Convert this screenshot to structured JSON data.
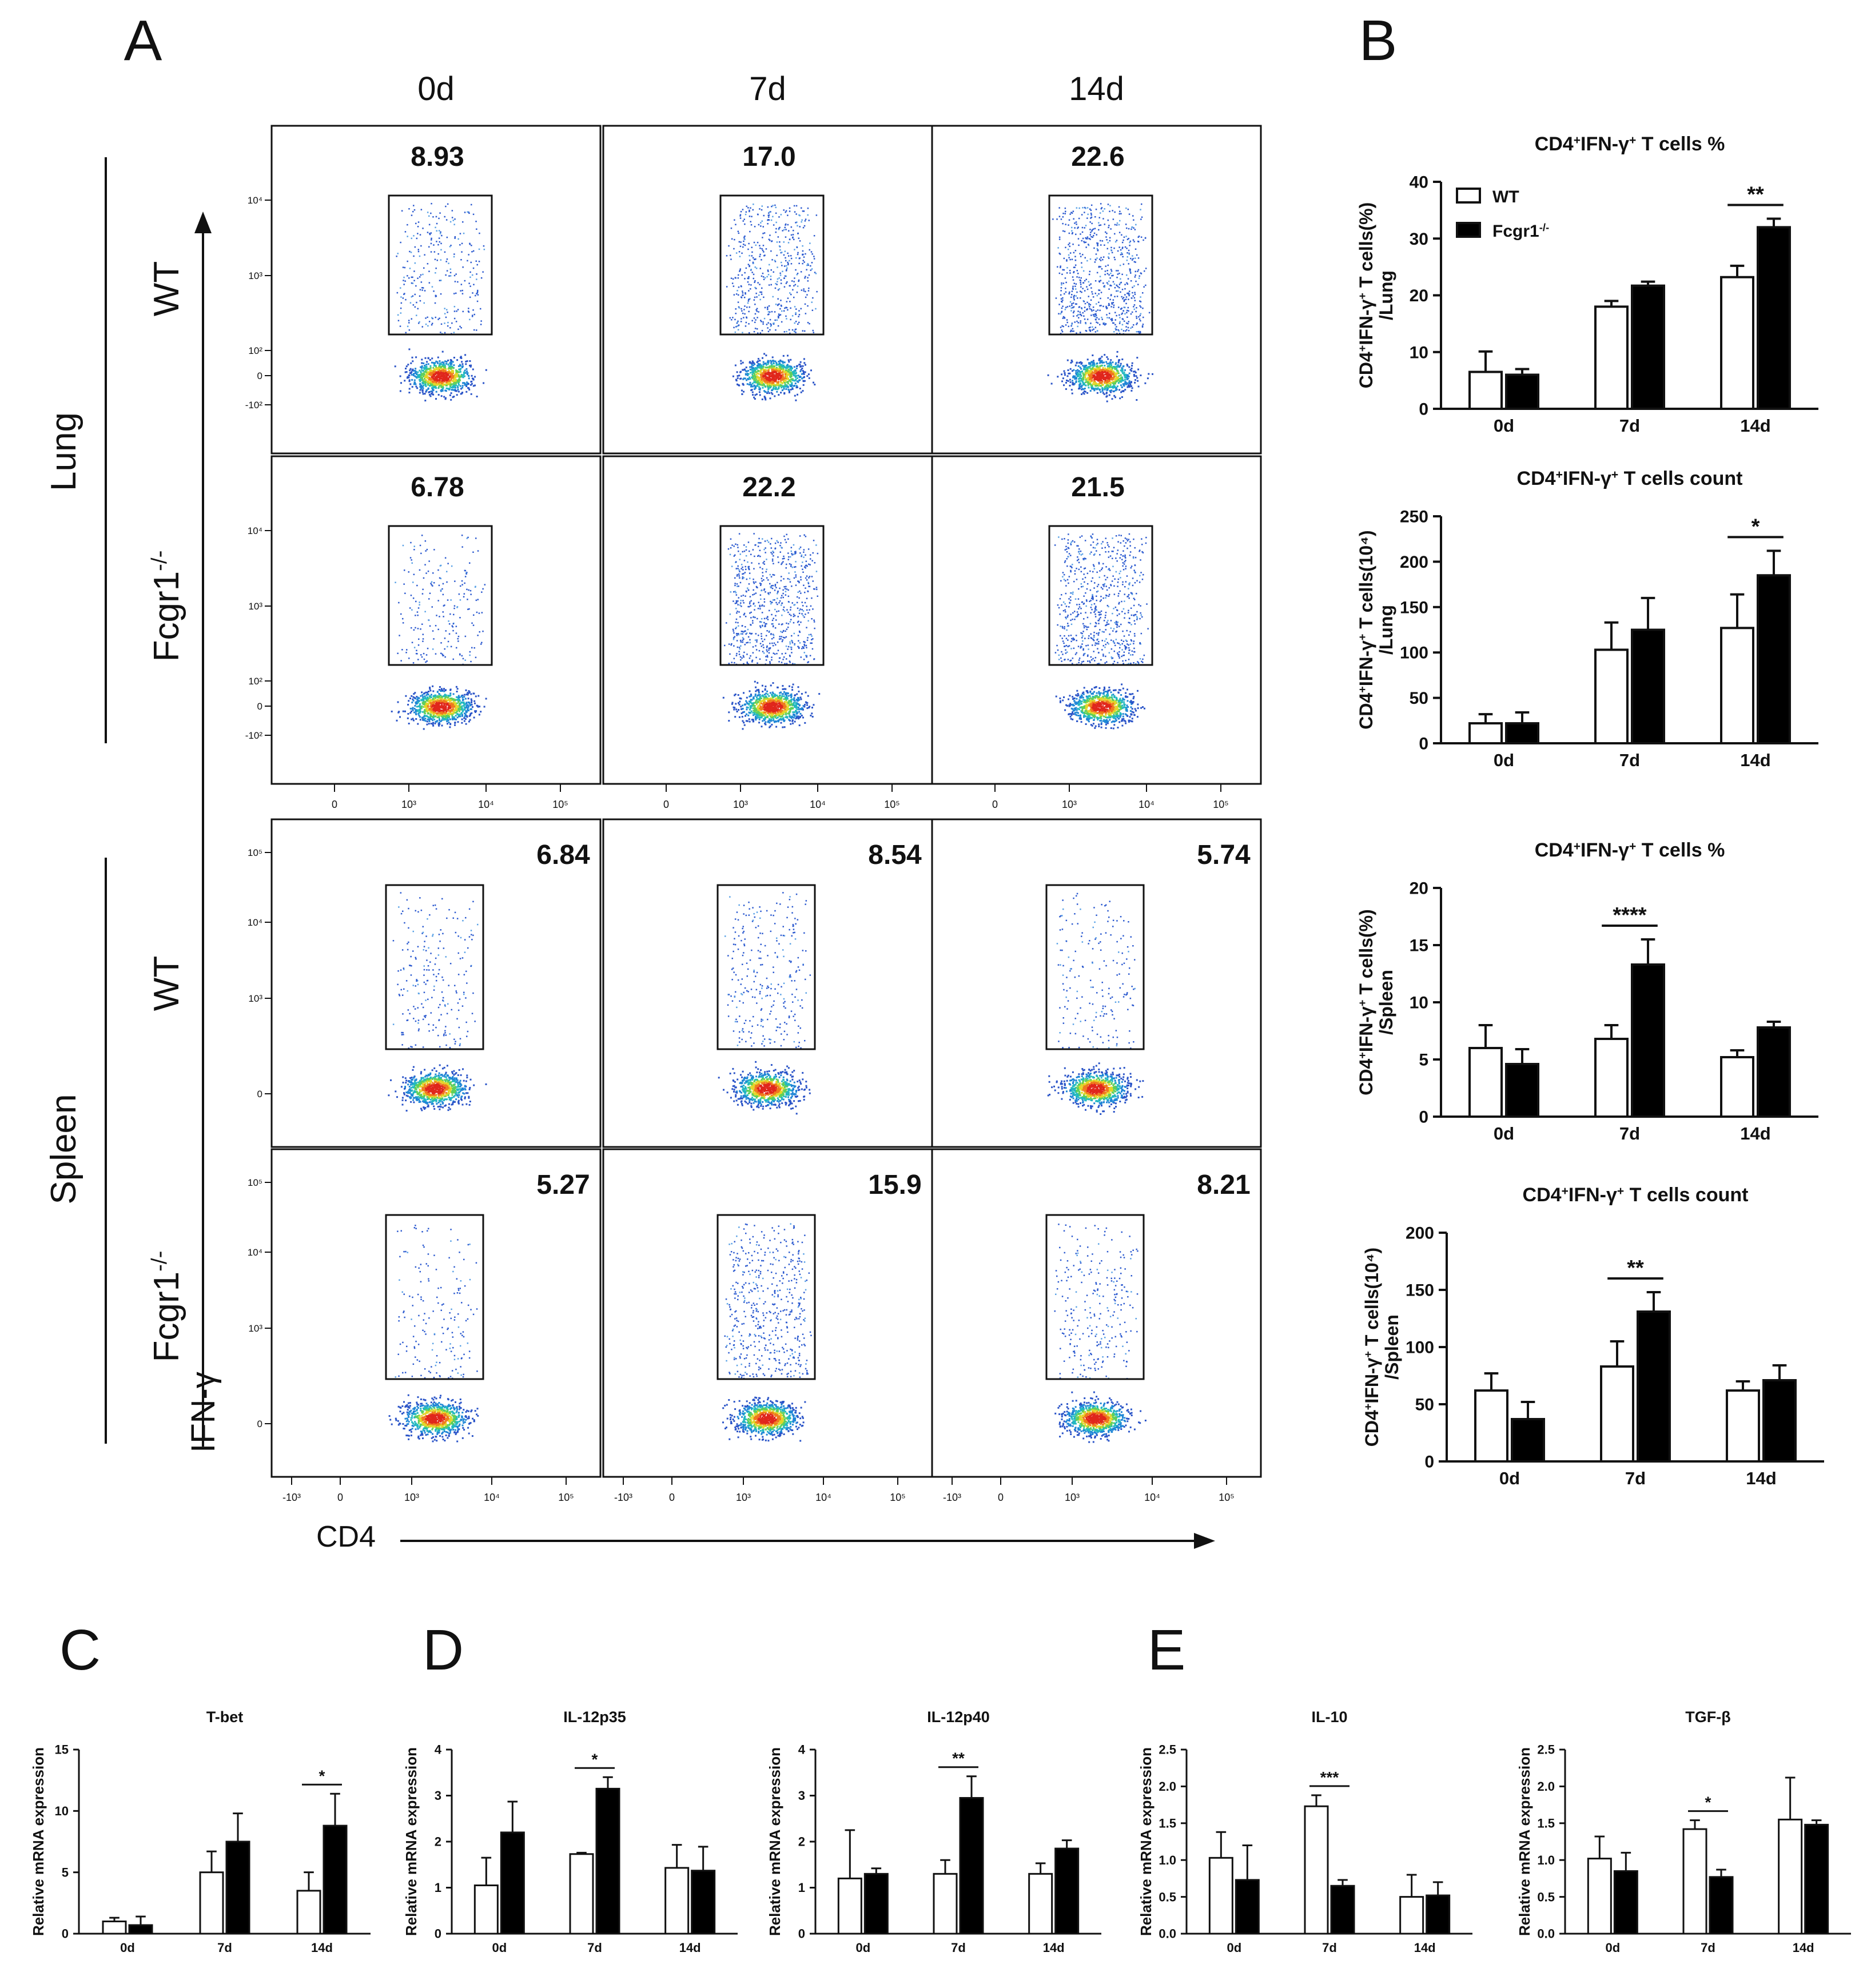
{
  "panel_letters": [
    "A",
    "B",
    "C",
    "D",
    "E"
  ],
  "flow": {
    "timepoints": [
      "0d",
      "7d",
      "14d"
    ],
    "tissues": [
      "Lung",
      "Spleen"
    ],
    "genotypes": [
      "WT",
      "Fcgr1-/-"
    ],
    "x_axis_label": "CD4",
    "y_axis_label": "IFN-γ",
    "gate_percentages": [
      [
        "8.93",
        "17.0",
        "22.6"
      ],
      [
        "6.78",
        "22.2",
        "21.5"
      ],
      [
        "6.84",
        "8.54",
        "5.74"
      ],
      [
        "5.27",
        "15.9",
        "8.21"
      ]
    ],
    "lung_y_ticks": [
      "10⁴",
      "10³",
      "10²",
      "0",
      "-10²"
    ],
    "spleen_y_ticks": [
      "10⁵",
      "10⁴",
      "10³",
      "0"
    ],
    "lung_x_ticks": [
      "0",
      "10³",
      "10⁴",
      "10⁵"
    ],
    "spleen_x_ticks": [
      "-10³",
      "0",
      "10³",
      "10⁴",
      "10⁵"
    ]
  },
  "legend": {
    "wt": "WT",
    "ko": "Fcgr1-/-"
  },
  "colors": {
    "wt_fill": "#ffffff",
    "ko_fill": "#000000",
    "axis": "#111111"
  },
  "chart_data": [
    {
      "type": "bar",
      "panel": "B",
      "title": "CD4+IFN-γ+ T cells %",
      "ylabel": "CD4+IFN-γ+ T cells(%)/Lung",
      "categories": [
        "0d",
        "7d",
        "14d"
      ],
      "ylim": [
        0,
        40
      ],
      "yticks": [
        0,
        10,
        20,
        30,
        40
      ],
      "series": [
        {
          "name": "WT",
          "values": [
            6.5,
            18,
            23.2
          ],
          "errors": [
            3.6,
            1,
            2
          ]
        },
        {
          "name": "Fcgr1-/-",
          "values": [
            6,
            21.7,
            32
          ],
          "errors": [
            1,
            0.7,
            1.5
          ]
        }
      ],
      "significance": [
        {
          "category": "14d",
          "label": "**"
        }
      ]
    },
    {
      "type": "bar",
      "panel": "B",
      "title": "CD4+IFN-γ+ T cells count",
      "ylabel": "CD4+IFN-γ+ T cells(10⁴)/Lung",
      "categories": [
        "0d",
        "7d",
        "14d"
      ],
      "ylim": [
        0,
        250
      ],
      "yticks": [
        0,
        50,
        100,
        150,
        200,
        250
      ],
      "series": [
        {
          "name": "WT",
          "values": [
            22,
            103,
            127
          ],
          "errors": [
            10,
            30,
            37
          ]
        },
        {
          "name": "Fcgr1-/-",
          "values": [
            22,
            125,
            185
          ],
          "errors": [
            12,
            35,
            27
          ]
        }
      ],
      "significance": [
        {
          "category": "14d",
          "label": "*"
        }
      ]
    },
    {
      "type": "bar",
      "panel": "B",
      "title": "CD4+IFN-γ+ T cells %",
      "ylabel": "CD4+IFN-γ+ T cells(%)/Spleen",
      "categories": [
        "0d",
        "7d",
        "14d"
      ],
      "ylim": [
        0,
        20
      ],
      "yticks": [
        0,
        5,
        10,
        15,
        20
      ],
      "series": [
        {
          "name": "WT",
          "values": [
            6,
            6.8,
            5.2
          ],
          "errors": [
            2,
            1.2,
            0.6
          ]
        },
        {
          "name": "Fcgr1-/-",
          "values": [
            4.6,
            13.3,
            7.8
          ],
          "errors": [
            1.3,
            2.2,
            0.5
          ]
        }
      ],
      "significance": [
        {
          "category": "7d",
          "label": "****"
        }
      ]
    },
    {
      "type": "bar",
      "panel": "B",
      "title": "CD4+IFN-γ+ T cells count",
      "ylabel": "CD4+IFN-γ+ T cells(10⁴)/Spleen",
      "categories": [
        "0d",
        "7d",
        "14d"
      ],
      "ylim": [
        0,
        200
      ],
      "yticks": [
        0,
        50,
        100,
        150,
        200
      ],
      "series": [
        {
          "name": "WT",
          "values": [
            62,
            83,
            62
          ],
          "errors": [
            15,
            22,
            8
          ]
        },
        {
          "name": "Fcgr1-/-",
          "values": [
            37,
            131,
            71
          ],
          "errors": [
            15,
            17,
            13
          ]
        }
      ],
      "significance": [
        {
          "category": "7d",
          "label": "**"
        }
      ]
    },
    {
      "type": "bar",
      "panel": "C",
      "title": "T-bet",
      "ylabel": "Relative mRNA expression",
      "categories": [
        "0d",
        "7d",
        "14d"
      ],
      "ylim": [
        0,
        15
      ],
      "yticks": [
        0,
        5,
        10,
        15
      ],
      "series": [
        {
          "name": "WT",
          "values": [
            1,
            5,
            3.5
          ],
          "errors": [
            0.3,
            1.7,
            1.5
          ]
        },
        {
          "name": "Fcgr1-/-",
          "values": [
            0.7,
            7.5,
            8.8
          ],
          "errors": [
            0.7,
            2.3,
            2.6
          ]
        }
      ],
      "significance": [
        {
          "category": "14d",
          "label": "*"
        }
      ]
    },
    {
      "type": "bar",
      "panel": "D",
      "title": "IL-12p35",
      "ylabel": "Relative mRNA expression",
      "categories": [
        "0d",
        "7d",
        "14d"
      ],
      "ylim": [
        0,
        4
      ],
      "yticks": [
        0,
        1,
        2,
        3,
        4
      ],
      "series": [
        {
          "name": "WT",
          "values": [
            1.05,
            1.73,
            1.43
          ],
          "errors": [
            0.6,
            0.03,
            0.5
          ]
        },
        {
          "name": "Fcgr1-/-",
          "values": [
            2.2,
            3.15,
            1.37
          ],
          "errors": [
            0.67,
            0.25,
            0.52
          ]
        }
      ],
      "significance": [
        {
          "category": "7d",
          "label": "*"
        }
      ]
    },
    {
      "type": "bar",
      "panel": "D",
      "title": "IL-12p40",
      "ylabel": "Relative mRNA expression",
      "categories": [
        "0d",
        "7d",
        "14d"
      ],
      "ylim": [
        0,
        4
      ],
      "yticks": [
        0,
        1,
        2,
        3,
        4
      ],
      "series": [
        {
          "name": "WT",
          "values": [
            1.2,
            1.3,
            1.3
          ],
          "errors": [
            1.05,
            0.3,
            0.23
          ]
        },
        {
          "name": "Fcgr1-/-",
          "values": [
            1.3,
            2.95,
            1.85
          ],
          "errors": [
            0.12,
            0.47,
            0.18
          ]
        }
      ],
      "significance": [
        {
          "category": "7d",
          "label": "**"
        }
      ]
    },
    {
      "type": "bar",
      "panel": "E",
      "title": "IL-10",
      "ylabel": "Relative mRNA expression",
      "categories": [
        "0d",
        "7d",
        "14d"
      ],
      "ylim": [
        0,
        2.5
      ],
      "yticks": [
        0.0,
        0.5,
        1.0,
        1.5,
        2.0,
        2.5
      ],
      "series": [
        {
          "name": "WT",
          "values": [
            1.03,
            1.73,
            0.5
          ],
          "errors": [
            0.35,
            0.15,
            0.3
          ]
        },
        {
          "name": "Fcgr1-/-",
          "values": [
            0.73,
            0.65,
            0.52
          ],
          "errors": [
            0.47,
            0.08,
            0.18
          ]
        }
      ],
      "significance": [
        {
          "category": "7d",
          "label": "***"
        }
      ]
    },
    {
      "type": "bar",
      "panel": "E",
      "title": "TGF-β",
      "ylabel": "Relative mRNA expression",
      "categories": [
        "0d",
        "7d",
        "14d"
      ],
      "ylim": [
        0,
        2.5
      ],
      "yticks": [
        0.0,
        0.5,
        1.0,
        1.5,
        2.0,
        2.5
      ],
      "series": [
        {
          "name": "WT",
          "values": [
            1.02,
            1.42,
            1.55
          ],
          "errors": [
            0.3,
            0.12,
            0.57
          ]
        },
        {
          "name": "Fcgr1-/-",
          "values": [
            0.85,
            0.77,
            1.48
          ],
          "errors": [
            0.25,
            0.1,
            0.06
          ]
        }
      ],
      "significance": [
        {
          "category": "7d",
          "label": "*"
        }
      ]
    }
  ]
}
